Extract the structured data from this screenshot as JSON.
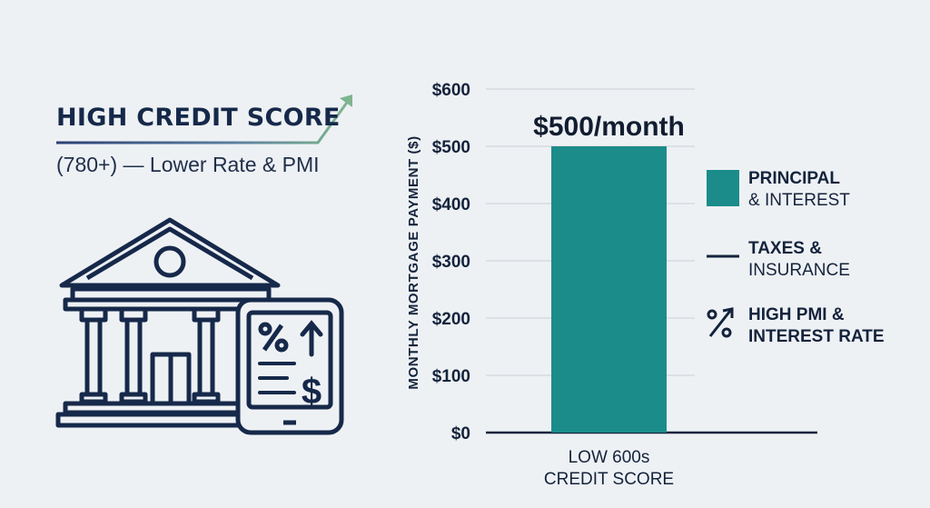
{
  "headline": {
    "title": "HIGH CREDIT SCORE",
    "subtitle": "(780+) — Lower Rate & PMI"
  },
  "illustration": {
    "icons": [
      "bank-icon",
      "tablet-icon",
      "percent-icon",
      "up-arrow-icon",
      "dollar-icon"
    ]
  },
  "chart_data": {
    "type": "bar",
    "categories": [
      "LOW 600s\nCREDIT SCORE"
    ],
    "category_lines": [
      "LOW 600s",
      "CREDIT SCORE"
    ],
    "values": [
      500
    ],
    "data_labels": [
      "$500/month"
    ],
    "ylabel": "MONTHLY MORTGAGE PAYMENT ($)",
    "ylim": [
      0,
      600
    ],
    "yticks": [
      0,
      100,
      200,
      300,
      400,
      500,
      600
    ],
    "ytick_labels": [
      "$0",
      "$100",
      "$200",
      "$300",
      "$400",
      "$500",
      "$600"
    ],
    "grid": true,
    "bar_color": "#1b8c8a",
    "legend_placement": "right",
    "legend": [
      {
        "line1": "PRINCIPAL",
        "line2": "& INTEREST",
        "marker": "swatch",
        "color": "#1b8c8a"
      },
      {
        "line1": "TAXES &",
        "line2": "INSURANCE",
        "marker": "line",
        "color": "#14233c"
      },
      {
        "line1": "HIGH PMI &",
        "line2": "INTEREST RATE",
        "marker": "percent-arrow-icon",
        "color": "#14233c"
      }
    ]
  },
  "colors": {
    "navy": "#16294a",
    "teal": "#1b8c8a",
    "arrow_green": "#6aa886"
  }
}
